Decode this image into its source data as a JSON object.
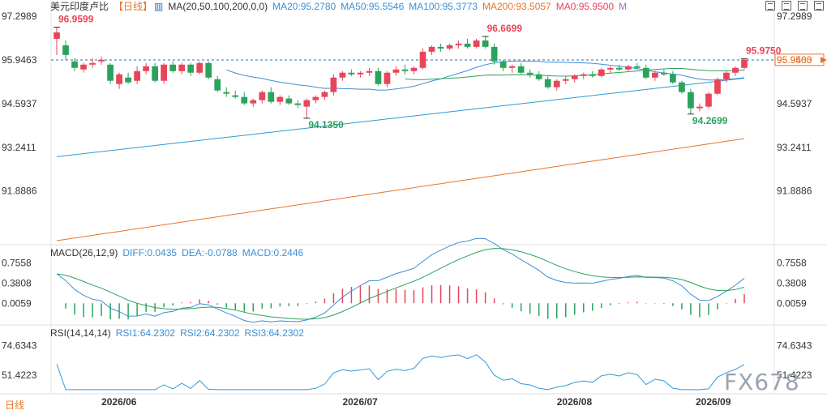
{
  "header": {
    "title": "美元印度卢比",
    "period_tag": "【日线】",
    "ma_label": "MA(20,50,100,200,0,0)",
    "ma20": "MA20:95.2780",
    "ma50": "MA50:95.5546",
    "ma100": "MA100:95.3773",
    "ma200": "MA200:93.5057",
    "ma0": "MA0:95.9500",
    "m": "M"
  },
  "macd": {
    "label": "MACD(26,12,9)",
    "diff": "DIFF:0.0435",
    "dea": "DEA:-0.0788",
    "macd": "MACD:0.2446"
  },
  "rsi": {
    "label": "RSI(14,14,14)",
    "rsi1": "RSI1:64.2302",
    "rsi2": "RSI2:64.2302",
    "rsi3": "RSI3:64.2302"
  },
  "period_button": "日线",
  "watermark": "FX678",
  "colors": {
    "up": "#e8455a",
    "down": "#2aa35b",
    "ma20": "#3b8fd6",
    "ma50": "#2aa35b",
    "ma100": "#2f9bd6",
    "ma200": "#e8742a",
    "ma0": "#e8455a",
    "dea": "#2aa35b"
  },
  "chart_data": {
    "type": "candlestick",
    "y_ticks": [
      "97.2989",
      "95.9463",
      "94.5937",
      "93.2411",
      "91.8886"
    ],
    "x_ticks": [
      "2026/06",
      "2026/07",
      "2026/08",
      "2026/09"
    ],
    "macd_ticks": [
      "0.7558",
      "0.3808",
      "0.0059"
    ],
    "rsi_ticks": [
      "74.6343",
      "51.4223"
    ],
    "current_price": "95.9500",
    "ref_line": "95.9463",
    "right_tag": "95.9463",
    "annotations": [
      "96.9599",
      "94.1350",
      "96.6699",
      "94.2699",
      "95.9750"
    ],
    "candles": [
      [
        96.6,
        96.96,
        96.1,
        96.8
      ],
      [
        96.4,
        96.55,
        95.95,
        96.1
      ],
      [
        95.9,
        96.0,
        95.6,
        95.7
      ],
      [
        95.65,
        95.85,
        95.55,
        95.8
      ],
      [
        95.8,
        96.0,
        95.7,
        95.85
      ],
      [
        95.9,
        96.05,
        95.8,
        95.95
      ],
      [
        95.8,
        95.85,
        95.2,
        95.3
      ],
      [
        95.2,
        95.55,
        95.05,
        95.5
      ],
      [
        95.4,
        95.55,
        95.2,
        95.25
      ],
      [
        95.3,
        95.75,
        95.2,
        95.6
      ],
      [
        95.6,
        95.85,
        95.5,
        95.75
      ],
      [
        95.75,
        95.85,
        95.25,
        95.3
      ],
      [
        95.3,
        95.85,
        95.2,
        95.8
      ],
      [
        95.8,
        95.9,
        95.55,
        95.6
      ],
      [
        95.6,
        95.85,
        95.5,
        95.8
      ],
      [
        95.8,
        95.85,
        95.45,
        95.55
      ],
      [
        95.55,
        95.9,
        95.5,
        95.85
      ],
      [
        95.85,
        95.9,
        95.35,
        95.4
      ],
      [
        95.35,
        95.45,
        94.95,
        95.0
      ],
      [
        94.95,
        95.1,
        94.8,
        94.9
      ],
      [
        94.85,
        95.0,
        94.75,
        94.8
      ],
      [
        94.8,
        94.95,
        94.55,
        94.6
      ],
      [
        94.6,
        94.75,
        94.5,
        94.7
      ],
      [
        94.7,
        95.0,
        94.6,
        94.95
      ],
      [
        94.95,
        95.1,
        94.6,
        94.65
      ],
      [
        94.65,
        94.85,
        94.55,
        94.8
      ],
      [
        94.75,
        94.85,
        94.55,
        94.6
      ],
      [
        94.6,
        94.7,
        94.45,
        94.55
      ],
      [
        94.5,
        94.75,
        94.14,
        94.7
      ],
      [
        94.7,
        94.85,
        94.6,
        94.8
      ],
      [
        94.8,
        95.0,
        94.7,
        94.95
      ],
      [
        94.95,
        95.5,
        94.85,
        95.4
      ],
      [
        95.4,
        95.6,
        95.3,
        95.55
      ],
      [
        95.55,
        95.65,
        95.45,
        95.5
      ],
      [
        95.5,
        95.6,
        95.4,
        95.55
      ],
      [
        95.55,
        95.7,
        95.45,
        95.6
      ],
      [
        95.6,
        95.7,
        95.15,
        95.2
      ],
      [
        95.2,
        95.6,
        95.1,
        95.55
      ],
      [
        95.55,
        95.75,
        95.45,
        95.65
      ],
      [
        95.65,
        95.8,
        95.5,
        95.6
      ],
      [
        95.6,
        95.75,
        95.5,
        95.7
      ],
      [
        95.7,
        96.3,
        95.65,
        96.2
      ],
      [
        96.2,
        96.4,
        96.1,
        96.35
      ],
      [
        96.35,
        96.45,
        96.2,
        96.3
      ],
      [
        96.3,
        96.45,
        96.25,
        96.4
      ],
      [
        96.4,
        96.55,
        96.3,
        96.45
      ],
      [
        96.45,
        96.6,
        96.3,
        96.35
      ],
      [
        96.35,
        96.6,
        96.3,
        96.55
      ],
      [
        96.55,
        96.67,
        96.3,
        96.35
      ],
      [
        96.35,
        96.45,
        95.8,
        95.9
      ],
      [
        95.9,
        95.95,
        95.6,
        95.7
      ],
      [
        95.7,
        95.8,
        95.55,
        95.75
      ],
      [
        95.75,
        95.85,
        95.5,
        95.55
      ],
      [
        95.55,
        95.65,
        95.4,
        95.5
      ],
      [
        95.5,
        95.6,
        95.3,
        95.35
      ],
      [
        95.35,
        95.45,
        95.05,
        95.1
      ],
      [
        95.1,
        95.35,
        95.0,
        95.3
      ],
      [
        95.3,
        95.45,
        95.2,
        95.35
      ],
      [
        95.35,
        95.5,
        95.25,
        95.45
      ],
      [
        95.45,
        95.55,
        95.35,
        95.5
      ],
      [
        95.5,
        95.6,
        95.4,
        95.45
      ],
      [
        95.45,
        95.7,
        95.4,
        95.65
      ],
      [
        95.65,
        95.75,
        95.55,
        95.7
      ],
      [
        95.7,
        95.8,
        95.6,
        95.65
      ],
      [
        95.65,
        95.8,
        95.6,
        95.75
      ],
      [
        95.75,
        95.85,
        95.65,
        95.7
      ],
      [
        95.7,
        95.8,
        95.35,
        95.4
      ],
      [
        95.4,
        95.6,
        95.3,
        95.55
      ],
      [
        95.55,
        95.65,
        95.45,
        95.5
      ],
      [
        95.5,
        95.6,
        95.2,
        95.25
      ],
      [
        95.25,
        95.3,
        94.9,
        94.95
      ],
      [
        94.95,
        95.05,
        94.27,
        94.45
      ],
      [
        94.45,
        94.6,
        94.35,
        94.5
      ],
      [
        94.5,
        94.95,
        94.45,
        94.9
      ],
      [
        94.9,
        95.4,
        94.85,
        95.35
      ],
      [
        95.35,
        95.6,
        95.25,
        95.55
      ],
      [
        95.55,
        95.75,
        95.45,
        95.7
      ],
      [
        95.7,
        95.98,
        95.65,
        95.95
      ]
    ]
  }
}
